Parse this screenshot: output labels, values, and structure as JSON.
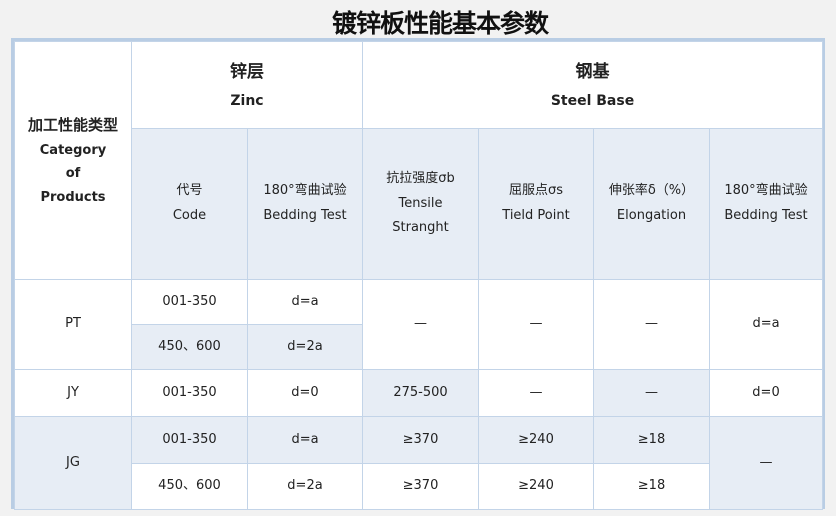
{
  "title": "镀锌板性能基本参数",
  "header": {
    "category_cn": "加工性能类型",
    "category_en": "Category of Products",
    "zinc_cn": "锌层",
    "zinc_en": "Zinc",
    "steel_cn": "钢基",
    "steel_en": "Steel Base",
    "columns": [
      {
        "cn": "代号",
        "en": "Code"
      },
      {
        "cn": "180°弯曲试验",
        "en": "Bedding Test"
      },
      {
        "cn": "抗拉强度σb",
        "en": "Tensile Stranght"
      },
      {
        "cn": "屈服点σs",
        "en": "Tield Point"
      },
      {
        "cn": "伸张率δ（%）",
        "en": "Elongation"
      },
      {
        "cn": "180°弯曲试验",
        "en": "Bedding Test"
      }
    ]
  },
  "rows": {
    "pt": {
      "category": "PT",
      "code1": "001-350",
      "bend1": "d=a",
      "code2": "450、600",
      "bend2": "d=2a",
      "tensile": "—",
      "yield": "—",
      "elong": "—",
      "steel_bend": "d=a"
    },
    "jy": {
      "category": "JY",
      "code": "001-350",
      "bend": "d=0",
      "tensile": "275-500",
      "yield": "—",
      "elong": "—",
      "steel_bend": "d=0"
    },
    "jg": {
      "category": "JG",
      "code1": "001-350",
      "bend1": "d=a",
      "tensile1": "≥370",
      "yield1": "≥240",
      "elong1": "≥18",
      "code2": "450、600",
      "bend2": "d=2a",
      "tensile2": "≥370",
      "yield2": "≥240",
      "elong2": "≥18",
      "steel_bend": "—"
    }
  },
  "colors": {
    "header_shade": "#e7edf5",
    "border": "#c3d4e8",
    "frame": "#b9cde4"
  }
}
